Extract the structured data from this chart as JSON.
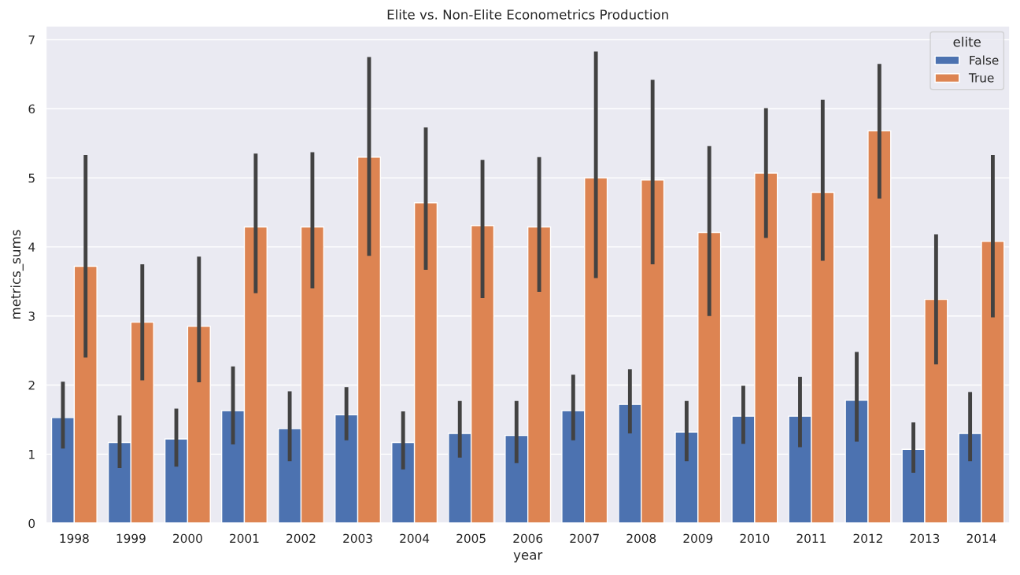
{
  "chart_data": {
    "type": "bar",
    "title": "Elite vs. Non-Elite Econometrics Production",
    "xlabel": "year",
    "ylabel": "metrics_sums",
    "legend_title": "elite",
    "categories": [
      "1998",
      "1999",
      "2000",
      "2001",
      "2002",
      "2003",
      "2004",
      "2005",
      "2006",
      "2007",
      "2008",
      "2009",
      "2010",
      "2011",
      "2012",
      "2013",
      "2014"
    ],
    "series": [
      {
        "name": "False",
        "color": "#4c72b0",
        "values": [
          1.53,
          1.17,
          1.22,
          1.63,
          1.37,
          1.57,
          1.17,
          1.3,
          1.27,
          1.63,
          1.72,
          1.32,
          1.55,
          1.55,
          1.78,
          1.07,
          1.3
        ],
        "errors": [
          [
            1.08,
            2.05
          ],
          [
            0.8,
            1.56
          ],
          [
            0.82,
            1.66
          ],
          [
            1.14,
            2.27
          ],
          [
            0.9,
            1.91
          ],
          [
            1.2,
            1.97
          ],
          [
            0.78,
            1.62
          ],
          [
            0.95,
            1.77
          ],
          [
            0.87,
            1.77
          ],
          [
            1.2,
            2.15
          ],
          [
            1.3,
            2.23
          ],
          [
            0.9,
            1.77
          ],
          [
            1.15,
            1.99
          ],
          [
            1.1,
            2.12
          ],
          [
            1.18,
            2.48
          ],
          [
            0.73,
            1.46
          ],
          [
            0.9,
            1.9
          ]
        ]
      },
      {
        "name": "True",
        "color": "#dd8452",
        "values": [
          3.72,
          2.91,
          2.85,
          4.29,
          4.29,
          5.3,
          4.64,
          4.31,
          4.29,
          5.0,
          4.97,
          4.21,
          5.07,
          4.79,
          5.68,
          3.24,
          4.08
        ],
        "errors": [
          [
            2.4,
            5.33
          ],
          [
            2.07,
            3.75
          ],
          [
            2.04,
            3.86
          ],
          [
            3.33,
            5.35
          ],
          [
            3.4,
            5.37
          ],
          [
            3.87,
            6.75
          ],
          [
            3.67,
            5.73
          ],
          [
            3.26,
            5.26
          ],
          [
            3.35,
            5.3
          ],
          [
            3.55,
            6.83
          ],
          [
            3.75,
            6.42
          ],
          [
            3.0,
            5.46
          ],
          [
            4.13,
            6.01
          ],
          [
            3.8,
            6.13
          ],
          [
            4.7,
            6.65
          ],
          [
            2.3,
            4.18
          ],
          [
            2.98,
            5.33
          ]
        ]
      }
    ],
    "ylim": [
      0,
      7.2
    ],
    "yticks": [
      0,
      1,
      2,
      3,
      4,
      5,
      6,
      7
    ],
    "grid": "y",
    "legend": "top right"
  }
}
